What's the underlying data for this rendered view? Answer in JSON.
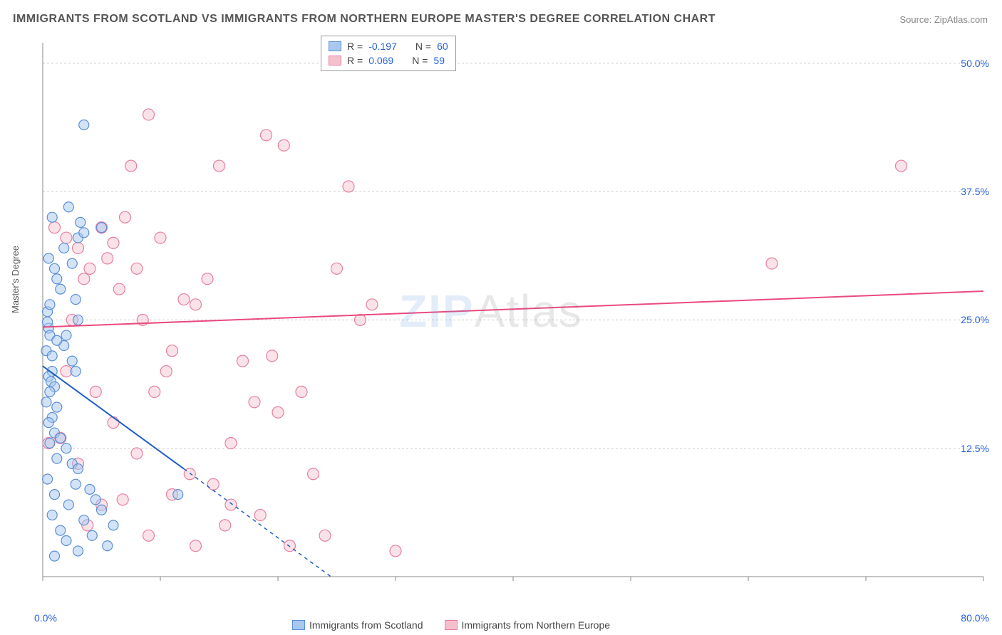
{
  "title": "IMMIGRANTS FROM SCOTLAND VS IMMIGRANTS FROM NORTHERN EUROPE MASTER'S DEGREE CORRELATION CHART",
  "source": "Source: ZipAtlas.com",
  "ylabel": "Master's Degree",
  "watermark_zip": "ZIP",
  "watermark_atlas": "Atlas",
  "chart": {
    "type": "scatter",
    "xlim": [
      0,
      80
    ],
    "ylim": [
      0,
      52
    ],
    "x_ticks": [
      0,
      10,
      20,
      30,
      40,
      50,
      60,
      70,
      80
    ],
    "y_gridlines": [
      12.5,
      25.0,
      37.5,
      50.0
    ],
    "x_axis_labels": [
      "0.0%",
      "80.0%"
    ],
    "y_axis_labels": [
      "12.5%",
      "25.0%",
      "37.5%",
      "50.0%"
    ],
    "background_color": "#ffffff",
    "grid_color": "#cccccc",
    "axis_color": "#888888",
    "tick_color": "#888888",
    "series": [
      {
        "name": "Immigrants from Scotland",
        "color_fill": "#a8c8f0",
        "color_stroke": "#5b8fd6",
        "line_color": "#1f5fc4",
        "marker_radius": 7,
        "fill_opacity": 0.5,
        "R": "-0.197",
        "N": "60",
        "trend_solid": {
          "x1": 0,
          "y1": 20.5,
          "x2": 12,
          "y2": 10.5
        },
        "trend_dash": {
          "x1": 12,
          "y1": 10.5,
          "x2": 24.5,
          "y2": 0
        },
        "points": [
          [
            0.5,
            24.2
          ],
          [
            0.6,
            23.5
          ],
          [
            0.3,
            22
          ],
          [
            0.4,
            25.8
          ],
          [
            0.8,
            20
          ],
          [
            0.5,
            19.5
          ],
          [
            0.7,
            19
          ],
          [
            1.0,
            18.5
          ],
          [
            0.6,
            18
          ],
          [
            0.3,
            17
          ],
          [
            1.2,
            16.5
          ],
          [
            0.8,
            15.5
          ],
          [
            0.5,
            15
          ],
          [
            1.0,
            14
          ],
          [
            1.5,
            13.5
          ],
          [
            0.6,
            13
          ],
          [
            2.0,
            12.5
          ],
          [
            1.2,
            11.5
          ],
          [
            2.5,
            11
          ],
          [
            3.0,
            10.5
          ],
          [
            0.4,
            9.5
          ],
          [
            2.8,
            9
          ],
          [
            4.0,
            8.5
          ],
          [
            1.0,
            8
          ],
          [
            4.5,
            7.5
          ],
          [
            2.2,
            7
          ],
          [
            5.0,
            6.5
          ],
          [
            0.8,
            6
          ],
          [
            3.5,
            5.5
          ],
          [
            6.0,
            5
          ],
          [
            1.5,
            4.5
          ],
          [
            4.2,
            4
          ],
          [
            2.0,
            3.5
          ],
          [
            5.5,
            3
          ],
          [
            3.0,
            2.5
          ],
          [
            1.0,
            2
          ],
          [
            0.5,
            31
          ],
          [
            1.8,
            32
          ],
          [
            2.5,
            30.5
          ],
          [
            1.2,
            29
          ],
          [
            3.0,
            33
          ],
          [
            0.8,
            35
          ],
          [
            2.2,
            36
          ],
          [
            3.5,
            33.5
          ],
          [
            1.5,
            28
          ],
          [
            2.8,
            27
          ],
          [
            0.6,
            26.5
          ],
          [
            3.2,
            34.5
          ],
          [
            1.0,
            30
          ],
          [
            0.4,
            24.8
          ],
          [
            5.0,
            34
          ],
          [
            2.0,
            23.5
          ],
          [
            1.8,
            22.5
          ],
          [
            2.5,
            21
          ],
          [
            3.0,
            25
          ],
          [
            1.2,
            23
          ],
          [
            0.8,
            21.5
          ],
          [
            2.8,
            20
          ],
          [
            3.5,
            44
          ],
          [
            11.5,
            8
          ]
        ]
      },
      {
        "name": "Immigrants from Northern Europe",
        "color_fill": "#f5c0cc",
        "color_stroke": "#e87ea0",
        "line_color": "#e94b7d",
        "marker_radius": 8,
        "fill_opacity": 0.45,
        "R": "0.069",
        "N": "59",
        "trend_solid": {
          "x1": 0,
          "y1": 24.3,
          "x2": 80,
          "y2": 27.8
        },
        "points": [
          [
            2,
            33
          ],
          [
            3,
            32
          ],
          [
            5,
            34
          ],
          [
            4,
            30
          ],
          [
            6,
            32.5
          ],
          [
            3.5,
            29
          ],
          [
            7,
            35
          ],
          [
            5.5,
            31
          ],
          [
            8,
            30
          ],
          [
            6.5,
            28
          ],
          [
            9,
            45
          ],
          [
            10,
            33
          ],
          [
            7.5,
            40
          ],
          [
            15,
            40
          ],
          [
            12,
            27
          ],
          [
            8.5,
            25
          ],
          [
            11,
            22
          ],
          [
            13,
            26.5
          ],
          [
            10.5,
            20
          ],
          [
            14,
            29
          ],
          [
            6,
            15
          ],
          [
            9.5,
            18
          ],
          [
            16,
            13
          ],
          [
            12.5,
            10
          ],
          [
            18,
            17
          ],
          [
            8,
            12
          ],
          [
            19,
            43
          ],
          [
            17,
            21
          ],
          [
            20,
            16
          ],
          [
            14.5,
            9
          ],
          [
            11,
            8
          ],
          [
            15.5,
            5
          ],
          [
            13,
            3
          ],
          [
            16,
            7
          ],
          [
            9,
            4
          ],
          [
            18.5,
            6
          ],
          [
            26,
            38
          ],
          [
            22,
            18
          ],
          [
            24,
            4
          ],
          [
            28,
            26.5
          ],
          [
            19.5,
            21.5
          ],
          [
            21,
            3
          ],
          [
            23,
            10
          ],
          [
            25,
            30
          ],
          [
            27,
            25
          ],
          [
            20.5,
            42
          ],
          [
            30,
            2.5
          ],
          [
            62,
            30.5
          ],
          [
            73,
            40
          ],
          [
            1.5,
            13.5
          ],
          [
            2.5,
            25
          ],
          [
            4.5,
            18
          ],
          [
            3,
            11
          ],
          [
            1,
            34
          ],
          [
            2,
            20
          ],
          [
            5,
            7
          ],
          [
            3.8,
            5
          ],
          [
            6.8,
            7.5
          ],
          [
            0.5,
            13
          ]
        ]
      }
    ]
  },
  "legend_top": {
    "rows": [
      {
        "swatch_fill": "#a8c8f0",
        "swatch_stroke": "#5b8fd6",
        "r_label": "R =",
        "r_val": "-0.197",
        "n_label": "N =",
        "n_val": "60"
      },
      {
        "swatch_fill": "#f5c0cc",
        "swatch_stroke": "#e87ea0",
        "r_label": "R =",
        "r_val": "0.069",
        "n_label": "N =",
        "n_val": "59"
      }
    ]
  },
  "legend_bottom": {
    "items": [
      {
        "swatch_fill": "#a8c8f0",
        "swatch_stroke": "#5b8fd6",
        "label": "Immigrants from Scotland"
      },
      {
        "swatch_fill": "#f5c0cc",
        "swatch_stroke": "#e87ea0",
        "label": "Immigrants from Northern Europe"
      }
    ]
  }
}
